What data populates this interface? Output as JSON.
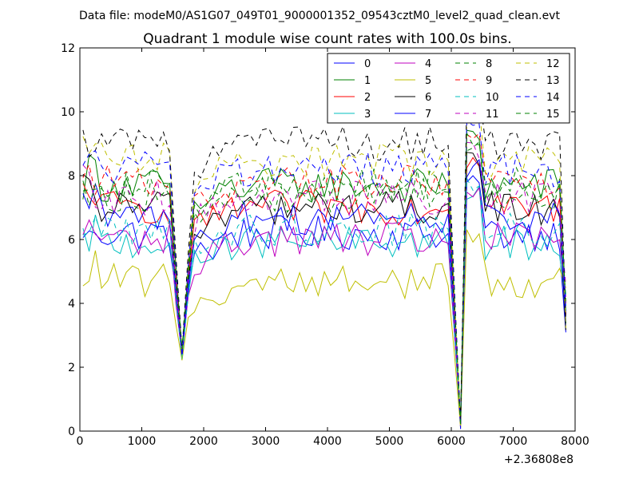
{
  "figure": {
    "suptitle": "Data file: modeM0/AS1G07_049T01_9000001352_09543cztM0_level2_quad_clean.evt"
  },
  "chart_data": {
    "type": "line",
    "title": "Quadrant 1 module wise count rates with 100.0s bins.",
    "xlabel": "",
    "ylabel": "",
    "x_offset_label": "+2.36808e8",
    "xlim": [
      0,
      8000
    ],
    "ylim": [
      0,
      12
    ],
    "x_ticks": [
      0,
      1000,
      2000,
      3000,
      4000,
      5000,
      6000,
      7000,
      8000
    ],
    "y_ticks": [
      0,
      2,
      4,
      6,
      8,
      10,
      12
    ],
    "x_tick_labels": [
      "0",
      "1000",
      "2000",
      "3000",
      "4000",
      "5000",
      "6000",
      "7000",
      "8000"
    ],
    "y_tick_labels": [
      "0",
      "2",
      "4",
      "6",
      "8",
      "10",
      "12"
    ],
    "grid": false,
    "legend": {
      "placement": "top-right",
      "columns": 4
    },
    "bin_seconds": 100,
    "series": [
      {
        "name": "0",
        "color": "#0000ff",
        "dashed": false,
        "base": 6.2,
        "envelope": 6.2
      },
      {
        "name": "1",
        "color": "#008000",
        "dashed": false,
        "base": 7.7,
        "envelope": 7.7
      },
      {
        "name": "2",
        "color": "#ff0000",
        "dashed": false,
        "base": 7.0,
        "envelope": 7.0
      },
      {
        "name": "3",
        "color": "#00bfbf",
        "dashed": false,
        "base": 5.9,
        "envelope": 5.9
      },
      {
        "name": "4",
        "color": "#bf00bf",
        "dashed": false,
        "base": 6.0,
        "envelope": 6.0
      },
      {
        "name": "5",
        "color": "#bfbf00",
        "dashed": false,
        "base": 4.7,
        "envelope": 4.7
      },
      {
        "name": "6",
        "color": "#000000",
        "dashed": false,
        "base": 7.0,
        "envelope": 7.0
      },
      {
        "name": "7",
        "color": "#0000ff",
        "dashed": false,
        "base": 6.7,
        "envelope": 6.7
      },
      {
        "name": "8",
        "color": "#008000",
        "dashed": true,
        "base": 7.4,
        "envelope": 7.4
      },
      {
        "name": "9",
        "color": "#ff0000",
        "dashed": true,
        "base": 7.8,
        "envelope": 7.8
      },
      {
        "name": "10",
        "color": "#00bfbf",
        "dashed": true,
        "base": 6.3,
        "envelope": 6.3
      },
      {
        "name": "11",
        "color": "#bf00bf",
        "dashed": true,
        "base": 7.3,
        "envelope": 7.3
      },
      {
        "name": "12",
        "color": "#bfbf00",
        "dashed": true,
        "base": 8.5,
        "envelope": 8.5
      },
      {
        "name": "13",
        "color": "#000000",
        "dashed": true,
        "base": 9.0,
        "envelope": 9.0
      },
      {
        "name": "14",
        "color": "#0000ff",
        "dashed": true,
        "base": 8.2,
        "envelope": 8.2
      },
      {
        "name": "15",
        "color": "#008000",
        "dashed": true,
        "base": 7.7,
        "envelope": 7.7
      }
    ]
  }
}
